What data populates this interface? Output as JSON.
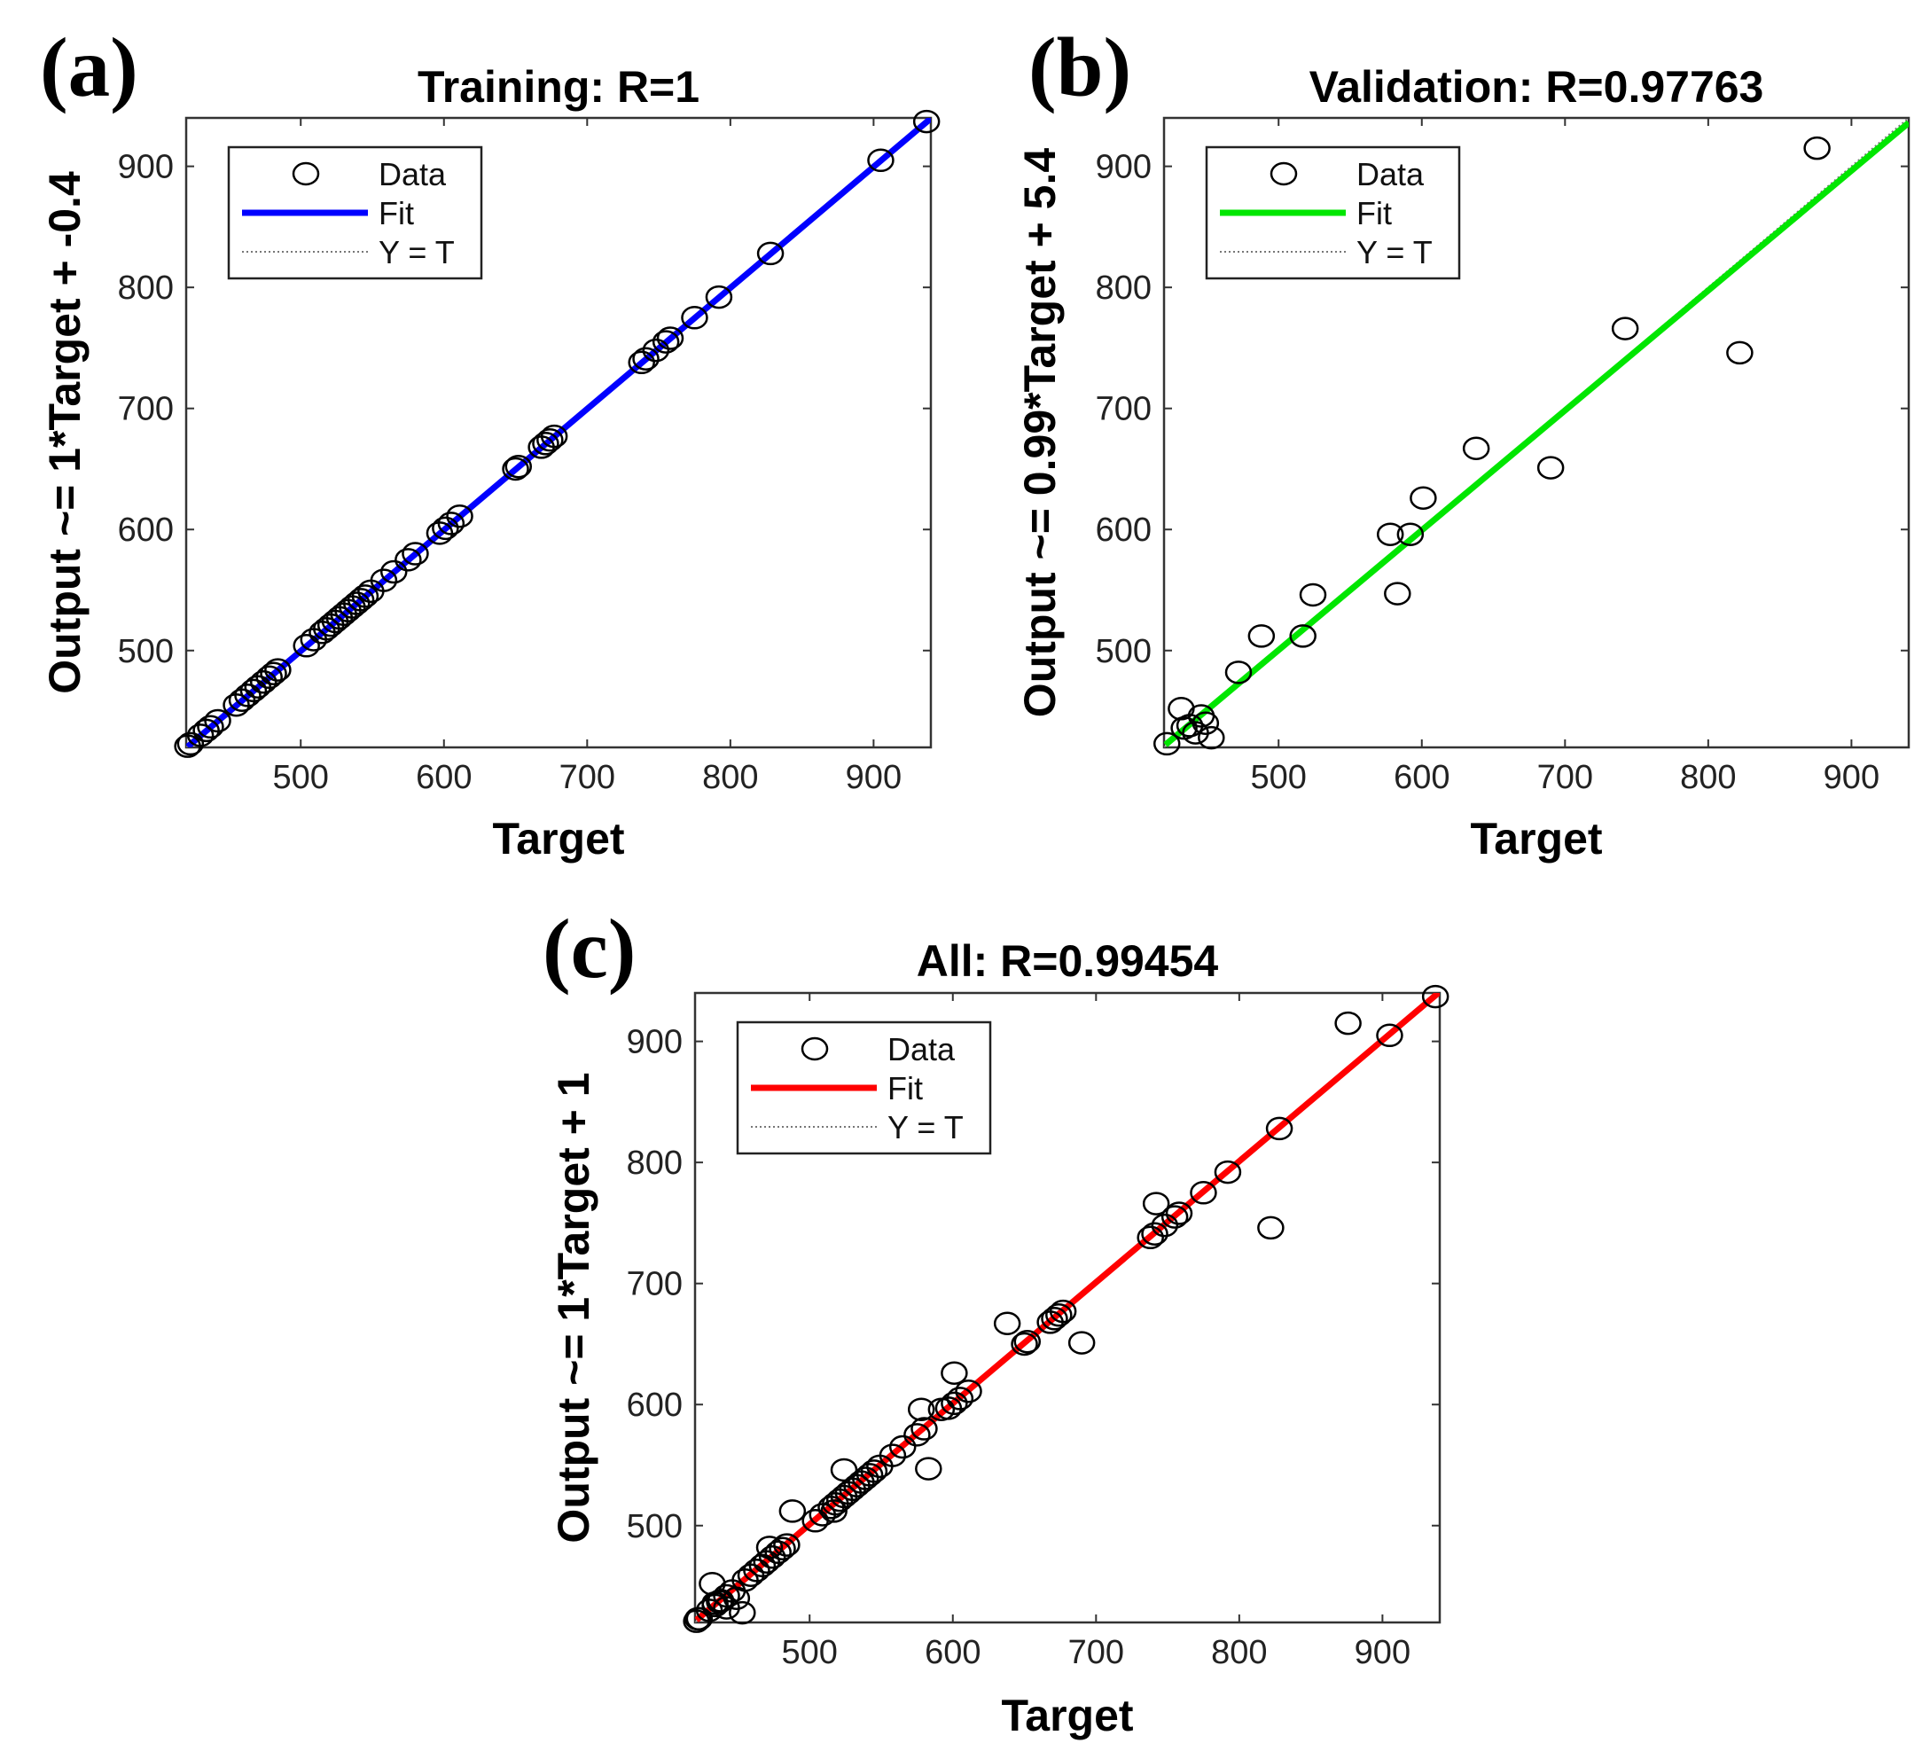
{
  "chart_data": [
    {
      "panel_label": "(a)",
      "type": "scatter",
      "title": "Training: R=1",
      "xlabel": "Target",
      "ylabel": "Output ~= 1*Target + -0.4",
      "xlim": [
        420,
        940
      ],
      "ylim": [
        420,
        940
      ],
      "xticks": [
        500,
        600,
        700,
        800,
        900
      ],
      "yticks": [
        500,
        600,
        700,
        800,
        900
      ],
      "legend": {
        "position": "top-left",
        "entries": [
          "Data",
          "Fit",
          "Y = T"
        ]
      },
      "fit": {
        "slope": 1,
        "intercept": -0.4,
        "color": "#0000ff"
      },
      "series": [
        {
          "name": "Data",
          "points": [
            [
              421,
              421
            ],
            [
              423,
              423
            ],
            [
              430,
              430
            ],
            [
              434,
              434
            ],
            [
              437,
              437
            ],
            [
              442,
              442
            ],
            [
              455,
              455
            ],
            [
              459,
              459
            ],
            [
              463,
              463
            ],
            [
              467,
              467
            ],
            [
              470,
              470
            ],
            [
              474,
              474
            ],
            [
              478,
              478
            ],
            [
              481,
              481
            ],
            [
              484,
              484
            ],
            [
              504,
              504
            ],
            [
              509,
              509
            ],
            [
              515,
              515
            ],
            [
              518,
              518
            ],
            [
              521,
              521
            ],
            [
              524,
              524
            ],
            [
              527,
              527
            ],
            [
              530,
              530
            ],
            [
              533,
              533
            ],
            [
              536,
              536
            ],
            [
              539,
              539
            ],
            [
              542,
              542
            ],
            [
              545,
              545
            ],
            [
              549,
              549
            ],
            [
              558,
              558
            ],
            [
              565,
              565
            ],
            [
              575,
              575
            ],
            [
              580,
              580
            ],
            [
              597,
              597
            ],
            [
              601,
              601
            ],
            [
              605,
              605
            ],
            [
              611,
              611
            ],
            [
              650,
              650
            ],
            [
              652,
              652
            ],
            [
              668,
              668
            ],
            [
              671,
              671
            ],
            [
              674,
              674
            ],
            [
              677,
              677
            ],
            [
              738,
              738
            ],
            [
              741,
              741
            ],
            [
              748,
              748
            ],
            [
              755,
              755
            ],
            [
              758,
              758
            ],
            [
              775,
              775
            ],
            [
              792,
              792
            ],
            [
              828,
              828
            ],
            [
              905,
              905
            ],
            [
              937,
              937
            ]
          ]
        }
      ]
    },
    {
      "panel_label": "(b)",
      "type": "scatter",
      "title": "Validation: R=0.97763",
      "xlabel": "Target",
      "ylabel": "Output ~= 0.99*Target + 5.4",
      "xlim": [
        420,
        940
      ],
      "ylim": [
        420,
        940
      ],
      "xticks": [
        500,
        600,
        700,
        800,
        900
      ],
      "yticks": [
        500,
        600,
        700,
        800,
        900
      ],
      "legend": {
        "position": "top-left",
        "entries": [
          "Data",
          "Fit",
          "Y = T"
        ]
      },
      "fit": {
        "slope": 0.99,
        "intercept": 5.4,
        "color": "#00e600"
      },
      "series": [
        {
          "name": "Data",
          "points": [
            [
              422,
              423
            ],
            [
              432,
              452
            ],
            [
              434,
              436
            ],
            [
              438,
              438
            ],
            [
              442,
              432
            ],
            [
              446,
              446
            ],
            [
              449,
              440
            ],
            [
              453,
              428
            ],
            [
              472,
              482
            ],
            [
              488,
              512
            ],
            [
              517,
              512
            ],
            [
              524,
              546
            ],
            [
              578,
              596
            ],
            [
              583,
              547
            ],
            [
              592,
              596
            ],
            [
              601,
              626
            ],
            [
              638,
              667
            ],
            [
              690,
              651
            ],
            [
              742,
              766
            ],
            [
              822,
              746
            ],
            [
              876,
              915
            ]
          ]
        }
      ]
    },
    {
      "panel_label": "(c)",
      "type": "scatter",
      "title": "All: R=0.99454",
      "xlabel": "Target",
      "ylabel": "Output ~= 1*Target + 1",
      "xlim": [
        420,
        940
      ],
      "ylim": [
        420,
        940
      ],
      "xticks": [
        500,
        600,
        700,
        800,
        900
      ],
      "yticks": [
        500,
        600,
        700,
        800,
        900
      ],
      "legend": {
        "position": "top-left",
        "entries": [
          "Data",
          "Fit",
          "Y = T"
        ]
      },
      "fit": {
        "slope": 1,
        "intercept": 1,
        "color": "#ff0000"
      },
      "series": [
        {
          "name": "Data",
          "points": [
            [
              421,
              421
            ],
            [
              423,
              423
            ],
            [
              430,
              430
            ],
            [
              434,
              434
            ],
            [
              437,
              437
            ],
            [
              442,
              442
            ],
            [
              455,
              455
            ],
            [
              459,
              459
            ],
            [
              463,
              463
            ],
            [
              467,
              467
            ],
            [
              470,
              470
            ],
            [
              474,
              474
            ],
            [
              478,
              478
            ],
            [
              481,
              481
            ],
            [
              484,
              484
            ],
            [
              504,
              504
            ],
            [
              509,
              509
            ],
            [
              515,
              515
            ],
            [
              518,
              518
            ],
            [
              521,
              521
            ],
            [
              524,
              524
            ],
            [
              527,
              527
            ],
            [
              530,
              530
            ],
            [
              533,
              533
            ],
            [
              536,
              536
            ],
            [
              539,
              539
            ],
            [
              542,
              542
            ],
            [
              545,
              545
            ],
            [
              549,
              549
            ],
            [
              558,
              558
            ],
            [
              565,
              565
            ],
            [
              575,
              575
            ],
            [
              580,
              580
            ],
            [
              597,
              597
            ],
            [
              601,
              601
            ],
            [
              605,
              605
            ],
            [
              611,
              611
            ],
            [
              650,
              650
            ],
            [
              652,
              652
            ],
            [
              668,
              668
            ],
            [
              671,
              671
            ],
            [
              674,
              674
            ],
            [
              677,
              677
            ],
            [
              738,
              738
            ],
            [
              741,
              741
            ],
            [
              748,
              748
            ],
            [
              755,
              755
            ],
            [
              758,
              758
            ],
            [
              775,
              775
            ],
            [
              792,
              792
            ],
            [
              828,
              828
            ],
            [
              905,
              905
            ],
            [
              937,
              937
            ],
            [
              422,
              423
            ],
            [
              432,
              452
            ],
            [
              434,
              436
            ],
            [
              438,
              438
            ],
            [
              442,
              432
            ],
            [
              446,
              446
            ],
            [
              449,
              440
            ],
            [
              453,
              428
            ],
            [
              472,
              482
            ],
            [
              488,
              512
            ],
            [
              517,
              512
            ],
            [
              524,
              546
            ],
            [
              578,
              596
            ],
            [
              583,
              547
            ],
            [
              592,
              596
            ],
            [
              601,
              626
            ],
            [
              638,
              667
            ],
            [
              690,
              651
            ],
            [
              742,
              766
            ],
            [
              822,
              746
            ],
            [
              876,
              915
            ]
          ]
        }
      ]
    }
  ]
}
